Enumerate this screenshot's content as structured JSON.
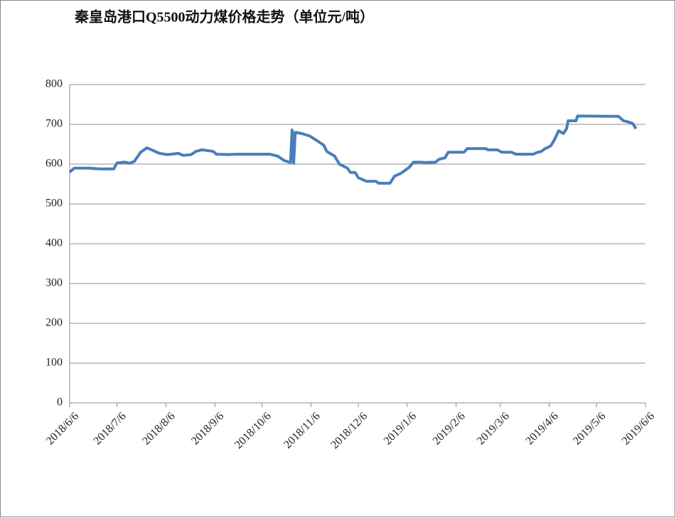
{
  "chart_data": {
    "type": "line",
    "title": "秦皇岛港口Q5500动力煤价格走势（单位元/吨）",
    "x": [
      "2018/6/6",
      "2018/6/9",
      "2018/6/18",
      "2018/6/25",
      "2018/7/4",
      "2018/7/6",
      "2018/7/11",
      "2018/7/14",
      "2018/7/17",
      "2018/7/21",
      "2018/7/25",
      "2018/7/29",
      "2018/8/2",
      "2018/8/7",
      "2018/8/14",
      "2018/8/17",
      "2018/8/22",
      "2018/8/25",
      "2018/8/29",
      "2018/9/5",
      "2018/9/7",
      "2018/9/14",
      "2018/9/21",
      "2018/10/2",
      "2018/10/11",
      "2018/10/16",
      "2018/10/20",
      "2018/10/24",
      "2018/10/25",
      "2018/10/26",
      "2018/10/27",
      "2018/10/31",
      "2018/11/5",
      "2018/11/9",
      "2018/11/14",
      "2018/11/16",
      "2018/11/21",
      "2018/11/24",
      "2018/11/29",
      "2018/12/1",
      "2018/12/4",
      "2018/12/6",
      "2018/12/11",
      "2018/12/17",
      "2018/12/19",
      "2018/12/26",
      "2018/12/29",
      "2019/1/2",
      "2019/1/7",
      "2019/1/10",
      "2019/1/15",
      "2019/1/17",
      "2019/1/24",
      "2019/1/26",
      "2019/1/30",
      "2019/2/1",
      "2019/2/11",
      "2019/2/13",
      "2019/2/25",
      "2019/2/26",
      "2019/3/4",
      "2019/3/7",
      "2019/3/13",
      "2019/3/16",
      "2019/3/27",
      "2019/3/29",
      "2019/4/1",
      "2019/4/3",
      "2019/4/7",
      "2019/4/9",
      "2019/4/12",
      "2019/4/15",
      "2019/4/17",
      "2019/4/18",
      "2019/4/23",
      "2019/4/24",
      "2019/5/20",
      "2019/5/23",
      "2019/5/27",
      "2019/5/29",
      "2019/5/31"
    ],
    "series": [
      {
        "color": "#4a7ebb",
        "values": [
          580,
          590,
          590,
          588,
          588,
          603,
          605,
          602,
          607,
          630,
          641,
          634,
          627,
          624,
          627,
          622,
          624,
          632,
          636,
          632,
          625,
          624,
          625,
          625,
          625,
          620,
          609,
          604,
          686,
          602,
          680,
          677,
          671,
          661,
          648,
          632,
          620,
          600,
          590,
          579,
          579,
          566,
          557,
          557,
          552,
          552,
          570,
          577,
          591,
          605,
          605,
          604,
          605,
          612,
          616,
          630,
          630,
          639,
          639,
          636,
          636,
          630,
          630,
          625,
          625,
          629,
          632,
          638,
          646,
          659,
          684,
          677,
          689,
          709,
          709,
          721,
          720,
          709,
          705,
          702,
          689
        ]
      }
    ],
    "xlim": [
      "2018/6/6",
      "2019/6/6"
    ],
    "xticks": [
      "2018/6/6",
      "2018/7/6",
      "2018/8/6",
      "2018/9/6",
      "2018/10/6",
      "2018/11/6",
      "2018/12/6",
      "2019/1/6",
      "2019/2/6",
      "2019/3/6",
      "2019/4/6",
      "2019/5/6",
      "2019/6/6"
    ],
    "ylim": [
      0,
      800
    ],
    "yticks": [
      0,
      100,
      200,
      300,
      400,
      500,
      600,
      700,
      800
    ],
    "grid": true
  }
}
